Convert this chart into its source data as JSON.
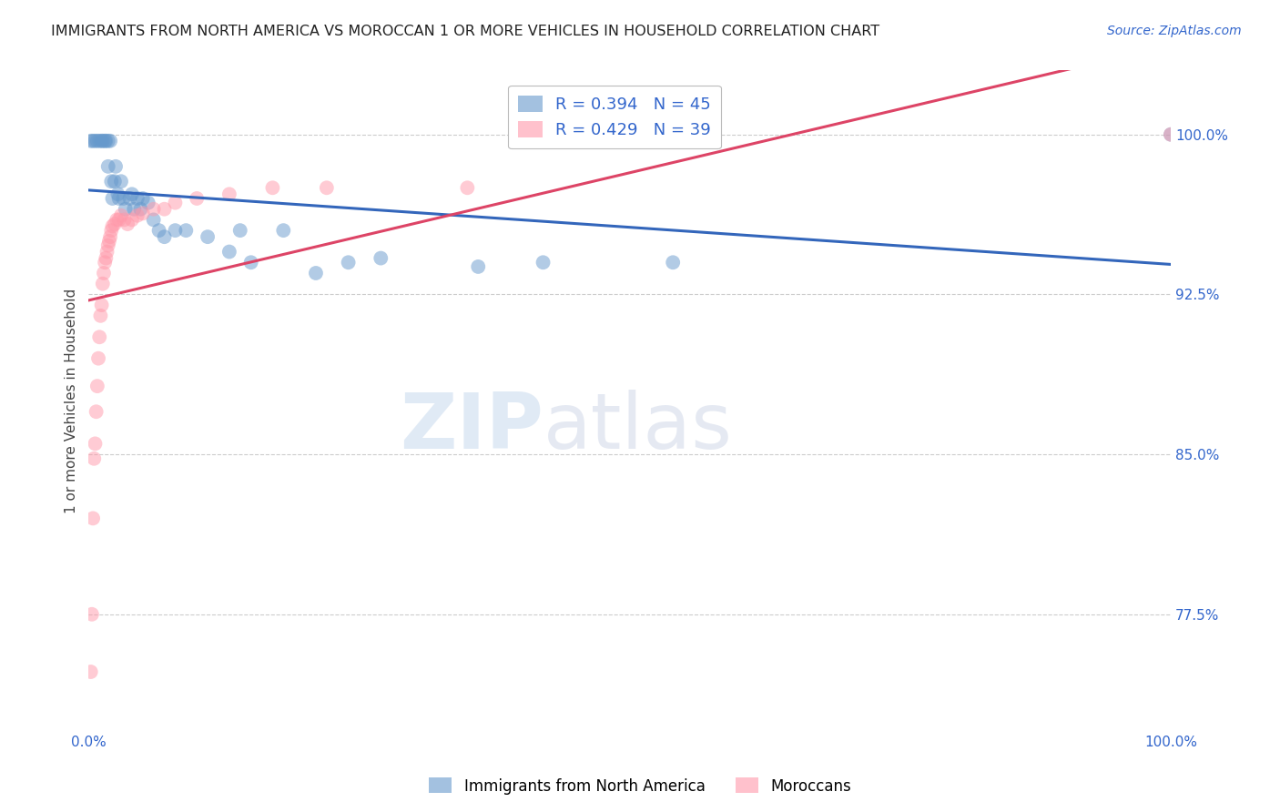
{
  "title": "IMMIGRANTS FROM NORTH AMERICA VS MOROCCAN 1 OR MORE VEHICLES IN HOUSEHOLD CORRELATION CHART",
  "source": "Source: ZipAtlas.com",
  "ylabel": "1 or more Vehicles in Household",
  "watermark_zip": "ZIP",
  "watermark_atlas": "atlas",
  "xlim": [
    0.0,
    1.0
  ],
  "ylim": [
    0.72,
    1.03
  ],
  "ytick_positions": [
    0.775,
    0.85,
    0.925,
    1.0
  ],
  "ytick_labels": [
    "77.5%",
    "85.0%",
    "92.5%",
    "100.0%"
  ],
  "blue_color": "#6699CC",
  "pink_color": "#FF99AA",
  "legend_blue_r": "R = 0.394",
  "legend_blue_n": "N = 45",
  "legend_pink_r": "R = 0.429",
  "legend_pink_n": "N = 39",
  "blue_label": "Immigrants from North America",
  "pink_label": "Moroccans",
  "blue_line_color": "#3366BB",
  "pink_line_color": "#DD4466",
  "blue_scatter_x": [
    0.002,
    0.004,
    0.006,
    0.008,
    0.01,
    0.012,
    0.013,
    0.015,
    0.016,
    0.018,
    0.018,
    0.02,
    0.021,
    0.022,
    0.024,
    0.025,
    0.027,
    0.028,
    0.03,
    0.032,
    0.034,
    0.038,
    0.04,
    0.042,
    0.045,
    0.048,
    0.05,
    0.055,
    0.06,
    0.065,
    0.07,
    0.08,
    0.09,
    0.11,
    0.13,
    0.14,
    0.15,
    0.18,
    0.21,
    0.24,
    0.27,
    0.36,
    0.42,
    0.54,
    1.0
  ],
  "blue_scatter_y": [
    0.997,
    0.997,
    0.997,
    0.997,
    0.997,
    0.997,
    0.997,
    0.997,
    0.997,
    0.997,
    0.985,
    0.997,
    0.978,
    0.97,
    0.978,
    0.985,
    0.972,
    0.97,
    0.978,
    0.97,
    0.965,
    0.97,
    0.972,
    0.965,
    0.97,
    0.965,
    0.97,
    0.968,
    0.96,
    0.955,
    0.952,
    0.955,
    0.955,
    0.952,
    0.945,
    0.955,
    0.94,
    0.955,
    0.935,
    0.94,
    0.942,
    0.938,
    0.94,
    0.94,
    1.0
  ],
  "pink_scatter_x": [
    0.002,
    0.003,
    0.004,
    0.005,
    0.006,
    0.007,
    0.008,
    0.009,
    0.01,
    0.011,
    0.012,
    0.013,
    0.014,
    0.015,
    0.016,
    0.017,
    0.018,
    0.019,
    0.02,
    0.021,
    0.022,
    0.024,
    0.026,
    0.028,
    0.03,
    0.033,
    0.036,
    0.04,
    0.045,
    0.05,
    0.06,
    0.07,
    0.08,
    0.1,
    0.13,
    0.17,
    0.22,
    0.35,
    1.0
  ],
  "pink_scatter_y": [
    0.748,
    0.775,
    0.82,
    0.848,
    0.855,
    0.87,
    0.882,
    0.895,
    0.905,
    0.915,
    0.92,
    0.93,
    0.935,
    0.94,
    0.942,
    0.945,
    0.948,
    0.95,
    0.952,
    0.955,
    0.957,
    0.958,
    0.96,
    0.96,
    0.962,
    0.96,
    0.958,
    0.96,
    0.962,
    0.963,
    0.965,
    0.965,
    0.968,
    0.97,
    0.972,
    0.975,
    0.975,
    0.975,
    1.0
  ]
}
